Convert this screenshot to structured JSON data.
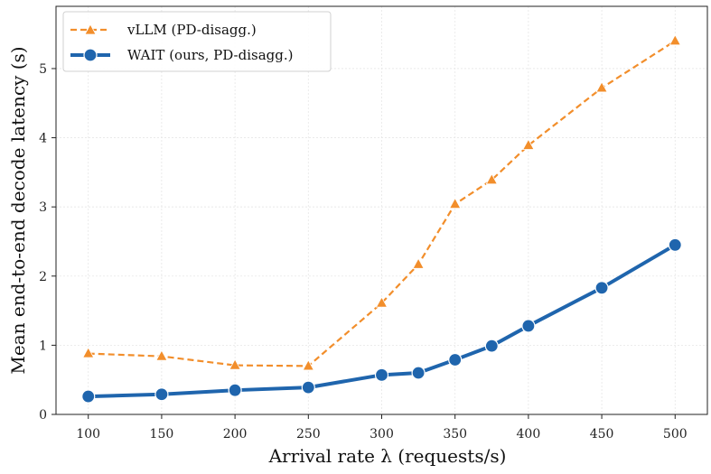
{
  "chart_data": {
    "type": "line",
    "title": "",
    "xlabel": "Arrival rate λ (requests/s)",
    "ylabel": "Mean end-to-end decode latency (s)",
    "xlim": [
      78,
      522
    ],
    "ylim": [
      0,
      5.9
    ],
    "xticks": [
      100,
      150,
      200,
      250,
      300,
      350,
      400,
      450,
      500
    ],
    "yticks": [
      0,
      1,
      2,
      3,
      4,
      5
    ],
    "grid": true,
    "legend_position": "top-left",
    "series": [
      {
        "name": "vLLM (PD-disagg.)",
        "color": "#f28e2b",
        "line_style": "dashed",
        "marker": "triangle",
        "x": [
          100,
          150,
          200,
          250,
          300,
          325,
          350,
          375,
          400,
          450,
          500
        ],
        "y": [
          0.88,
          0.84,
          0.71,
          0.7,
          1.61,
          2.17,
          3.04,
          3.39,
          3.89,
          4.72,
          5.4
        ]
      },
      {
        "name": "WAIT (ours, PD-disagg.)",
        "color": "#1f65ad",
        "line_style": "solid",
        "marker": "circle",
        "x": [
          100,
          150,
          200,
          250,
          300,
          325,
          350,
          375,
          400,
          450,
          500
        ],
        "y": [
          0.26,
          0.29,
          0.35,
          0.39,
          0.57,
          0.6,
          0.79,
          0.99,
          1.28,
          1.83,
          2.45
        ]
      }
    ]
  }
}
